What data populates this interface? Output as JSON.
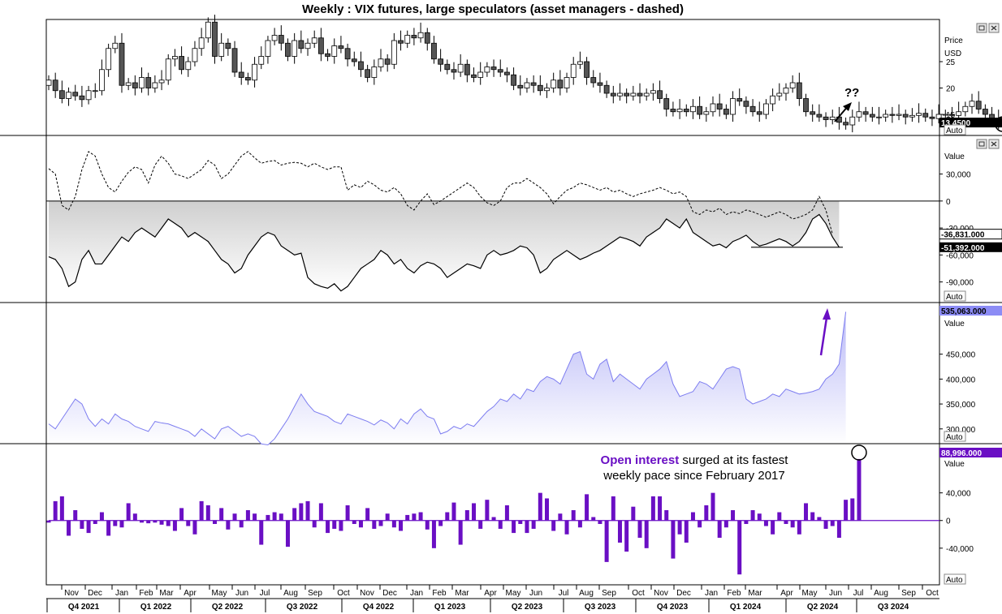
{
  "title": "Weekly : VIX futures, large speculators (asset managers - dashed)",
  "colors": {
    "up_candle": "#ffffff",
    "down_candle": "#555555",
    "purple": "#6a0fc4",
    "area_blue": "#7d7df0",
    "oi_tag": "#8c8cf5",
    "ann_purple": "#6a0fc4"
  },
  "x_axis": {
    "months": [
      "Nov",
      "Dec",
      "Jan",
      "Feb",
      "Mar",
      "Apr",
      "May",
      "Jun",
      "Jul",
      "Aug",
      "Sep",
      "Oct",
      "Nov",
      "Dec",
      "Jan",
      "Feb",
      "Mar",
      "Apr",
      "May",
      "Jun",
      "Jul",
      "Aug",
      "Sep",
      "Oct",
      "Nov",
      "Dec",
      "Jan",
      "Feb",
      "Mar",
      "Apr",
      "May",
      "Jun",
      "Jul",
      "Aug",
      "Sep",
      "Oct"
    ],
    "quarters": [
      "Q4 2021",
      "Q1 2022",
      "Q2 2022",
      "Q3 2022",
      "Q4 2022",
      "Q1 2023",
      "Q2 2023",
      "Q3 2023",
      "Q4 2023",
      "Q1 2024",
      "Q2 2024",
      "Q3 2024"
    ]
  },
  "panel_controls": [
    "restore-icon",
    "close-icon"
  ],
  "chart_data": [
    {
      "type": "candlestick",
      "panel": "price",
      "ylabel": "Price",
      "unit": "USD",
      "ticks": [
        25,
        20,
        15
      ],
      "ylim": [
        11,
        33
      ],
      "last_value": "13.4500",
      "scale_button": "Auto",
      "annotation": "??",
      "close": [
        21.5,
        19.5,
        18.0,
        19.2,
        18.5,
        17.8,
        19.5,
        19.5,
        23.5,
        27.5,
        28.5,
        20.5,
        21.0,
        20.0,
        22.0,
        20.0,
        21.0,
        21.5,
        25.5,
        26.0,
        23.5,
        25.0,
        27.5,
        29.5,
        32.5,
        26.0,
        28.5,
        27.5,
        23.0,
        22.0,
        21.5,
        24.5,
        26.0,
        29.0,
        30.0,
        28.5,
        26.0,
        29.0,
        27.5,
        28.5,
        29.5,
        26.5,
        26.0,
        28.0,
        27.5,
        25.5,
        25.0,
        23.5,
        22.0,
        24.0,
        25.5,
        24.5,
        29.0,
        28.5,
        30.0,
        29.5,
        30.5,
        28.5,
        25.5,
        24.5,
        23.5,
        23.0,
        24.5,
        22.5,
        22.0,
        23.0,
        24.0,
        23.5,
        23.0,
        22.5,
        20.5,
        20.0,
        21.0,
        20.5,
        19.5,
        20.0,
        21.5,
        20.0,
        22.0,
        24.5,
        25.0,
        22.0,
        21.0,
        20.5,
        19.0,
        18.5,
        19.0,
        18.5,
        19.0,
        18.5,
        19.0,
        19.5,
        18.0,
        16.0,
        15.5,
        16.0,
        15.5,
        16.5,
        15.0,
        15.5,
        17.0,
        16.0,
        15.0,
        18.0,
        17.5,
        16.5,
        15.5,
        15.0,
        17.0,
        18.5,
        19.0,
        20.0,
        21.0,
        18.0,
        15.5,
        15.0,
        14.5,
        14.0,
        14.5,
        13.5,
        13.0,
        14.5,
        15.5,
        15.0,
        14.5,
        14.5,
        15.0,
        14.8,
        15.0,
        14.5,
        14.8,
        15.2,
        14.5,
        14.2,
        15.0,
        15.0,
        14.8,
        15.5,
        16.5,
        17.5,
        16.0,
        15.0,
        14.0,
        13.6,
        13.45
      ],
      "last_close": 13.45
    },
    {
      "type": "line",
      "panel": "positioning",
      "ylabel": "Value",
      "ticks": [
        30000,
        0,
        -30000,
        -60000,
        -90000
      ],
      "ylim": [
        -112000,
        72000
      ],
      "scale_button": "Auto",
      "series": [
        {
          "name": "asset managers - dashed",
          "style": "dashed",
          "last_value": "-36,831.000"
        },
        {
          "name": "large speculators",
          "style": "solid",
          "last_value": "-51,392.000"
        }
      ],
      "am_values": [
        36000,
        30000,
        -5000,
        -10000,
        5000,
        35000,
        55000,
        50000,
        30000,
        15000,
        10000,
        22000,
        32000,
        38000,
        35000,
        20000,
        40000,
        50000,
        42000,
        30000,
        28000,
        25000,
        30000,
        35000,
        45000,
        40000,
        25000,
        30000,
        40000,
        50000,
        55000,
        48000,
        42000,
        44000,
        45000,
        40000,
        42000,
        43000,
        42000,
        38000,
        42000,
        38000,
        35000,
        38000,
        38000,
        12000,
        18000,
        15000,
        22000,
        18000,
        12000,
        10000,
        15000,
        8000,
        -5000,
        -10000,
        0,
        8000,
        -4000,
        0,
        5000,
        10000,
        15000,
        20000,
        15000,
        5000,
        -2000,
        -5000,
        0,
        15000,
        20000,
        20000,
        25000,
        20000,
        15000,
        8000,
        -3000,
        5000,
        12000,
        15000,
        20000,
        18000,
        15000,
        12000,
        15000,
        10000,
        12000,
        8000,
        5000,
        8000,
        10000,
        12000,
        15000,
        12000,
        8000,
        10000,
        5000,
        -12000,
        -15000,
        -10000,
        -12000,
        -8000,
        -15000,
        -12000,
        -14000,
        -10000,
        -12000,
        -15000,
        -18000,
        -15000,
        -12000,
        -15000,
        -20000,
        -18000,
        -15000,
        -10000,
        5000,
        -10000,
        -36831
      ],
      "ls_values": [
        -62000,
        -65000,
        -75000,
        -95000,
        -90000,
        -65000,
        -55000,
        -70000,
        -70000,
        -60000,
        -50000,
        -40000,
        -45000,
        -35000,
        -30000,
        -35000,
        -40000,
        -30000,
        -20000,
        -25000,
        -30000,
        -40000,
        -35000,
        -40000,
        -45000,
        -55000,
        -65000,
        -70000,
        -80000,
        -75000,
        -60000,
        -50000,
        -40000,
        -35000,
        -38000,
        -50000,
        -55000,
        -60000,
        -58000,
        -85000,
        -92000,
        -95000,
        -97000,
        -92000,
        -100000,
        -95000,
        -85000,
        -75000,
        -70000,
        -65000,
        -55000,
        -60000,
        -70000,
        -65000,
        -75000,
        -80000,
        -72000,
        -68000,
        -70000,
        -75000,
        -85000,
        -80000,
        -75000,
        -70000,
        -72000,
        -75000,
        -60000,
        -55000,
        -60000,
        -58000,
        -55000,
        -50000,
        -52000,
        -60000,
        -80000,
        -75000,
        -65000,
        -60000,
        -55000,
        -60000,
        -65000,
        -62000,
        -58000,
        -55000,
        -50000,
        -45000,
        -40000,
        -42000,
        -45000,
        -50000,
        -40000,
        -35000,
        -30000,
        -20000,
        -25000,
        -30000,
        -20000,
        -35000,
        -40000,
        -45000,
        -50000,
        -48000,
        -52000,
        -45000,
        -42000,
        -38000,
        -45000,
        -50000,
        -48000,
        -45000,
        -42000,
        -45000,
        -50000,
        -45000,
        -35000,
        -20000,
        -15000,
        -25000,
        -40000,
        -51392
      ]
    },
    {
      "type": "area",
      "panel": "open-interest",
      "ylabel": "Value",
      "ticks": [
        450000,
        400000,
        350000,
        300000
      ],
      "ylim": [
        272000,
        552000
      ],
      "last_value": "535,063.000",
      "scale_button": "Auto",
      "values": [
        310000,
        300000,
        320000,
        340000,
        360000,
        350000,
        320000,
        305000,
        320000,
        310000,
        330000,
        320000,
        315000,
        305000,
        300000,
        295000,
        315000,
        312000,
        310000,
        305000,
        300000,
        295000,
        285000,
        300000,
        290000,
        280000,
        300000,
        305000,
        295000,
        285000,
        290000,
        285000,
        270000,
        268000,
        280000,
        300000,
        320000,
        345000,
        370000,
        350000,
        335000,
        330000,
        325000,
        315000,
        310000,
        330000,
        325000,
        320000,
        315000,
        308000,
        318000,
        312000,
        300000,
        320000,
        310000,
        330000,
        340000,
        325000,
        320000,
        290000,
        295000,
        305000,
        300000,
        310000,
        305000,
        320000,
        335000,
        345000,
        360000,
        355000,
        370000,
        360000,
        380000,
        375000,
        395000,
        405000,
        400000,
        390000,
        420000,
        450000,
        455000,
        410000,
        400000,
        430000,
        440000,
        395000,
        410000,
        400000,
        390000,
        380000,
        400000,
        410000,
        420000,
        435000,
        390000,
        365000,
        370000,
        375000,
        395000,
        390000,
        380000,
        400000,
        420000,
        425000,
        420000,
        360000,
        350000,
        355000,
        360000,
        370000,
        365000,
        380000,
        375000,
        370000,
        372000,
        375000,
        380000,
        400000,
        410000,
        430000,
        535063
      ]
    },
    {
      "type": "bar",
      "panel": "open-interest-change",
      "ylabel": "Value",
      "ticks": [
        40000,
        0,
        -40000
      ],
      "ylim": [
        -93000,
        110000
      ],
      "last_value": "88,996.000",
      "scale_button": "Auto",
      "annotation": {
        "bold": "Open interest",
        "rest": " surged at its fastest",
        "line2": "weekly pace since February 2017"
      },
      "values": [
        -3000,
        28000,
        35000,
        -22000,
        15000,
        -12000,
        -18000,
        -5000,
        12000,
        -22000,
        -8000,
        -10000,
        25000,
        10000,
        -3000,
        -4000,
        -3000,
        -6000,
        -8000,
        -15000,
        18000,
        -8000,
        -20000,
        28000,
        22000,
        -5000,
        18000,
        -13000,
        10000,
        -10000,
        15000,
        10000,
        -35000,
        8000,
        12000,
        10000,
        -38000,
        18000,
        25000,
        28000,
        -10000,
        25000,
        -18000,
        -12000,
        -15000,
        22000,
        -5000,
        -10000,
        18000,
        -12000,
        -8000,
        10000,
        -10000,
        -15000,
        8000,
        10000,
        12000,
        -13000,
        -40000,
        -8000,
        12000,
        26000,
        -35000,
        15000,
        25000,
        -12000,
        30000,
        5000,
        -12000,
        22000,
        -18000,
        -5000,
        -18000,
        -12000,
        40000,
        32000,
        -15000,
        10000,
        -20000,
        15000,
        -10000,
        38000,
        5000,
        -5000,
        -60000,
        35000,
        -32000,
        -45000,
        20000,
        -25000,
        -40000,
        35000,
        35000,
        15000,
        -55000,
        -20000,
        -32000,
        12000,
        -10000,
        22000,
        40000,
        -25000,
        -10000,
        15000,
        -78000,
        -5000,
        15000,
        10000,
        -8000,
        -20000,
        12000,
        -5000,
        -10000,
        -20000,
        25000,
        12000,
        5000,
        -12000,
        -8000,
        -25000,
        30000,
        32000,
        88996
      ]
    }
  ]
}
